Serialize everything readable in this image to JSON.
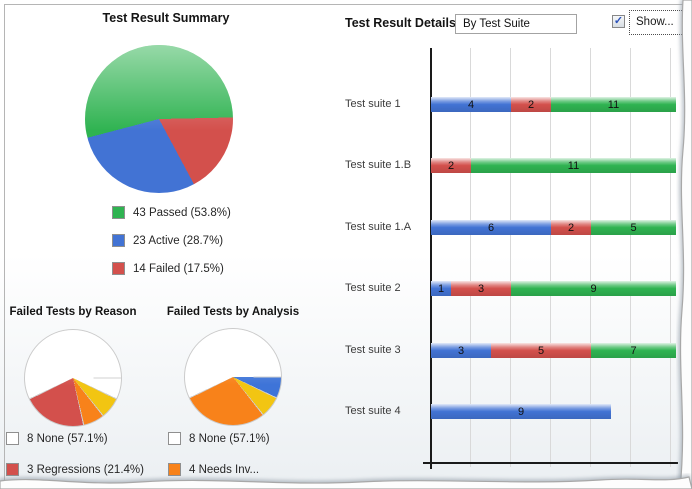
{
  "colors": {
    "passed": "#2fb351",
    "active": "#4273d4",
    "failed": "#d3504c",
    "orange": "#f8821a",
    "gold": "#f2c512",
    "blue": "#3e74d8",
    "white": "#ffffff",
    "grid": "#d9d9d9",
    "axis": "#1a1a1a",
    "slice_separator": "#cfcfcf"
  },
  "summary": {
    "title": "Test Result Summary",
    "legend": [
      {
        "label": "43 Passed (53.8%)",
        "color_key": "passed"
      },
      {
        "label": "23 Active (28.7%)",
        "color_key": "active"
      },
      {
        "label": "14 Failed (17.5%)",
        "color_key": "failed"
      }
    ]
  },
  "reason": {
    "title": "Failed Tests by Reason",
    "legend": [
      {
        "label": "8 None (57.1%)",
        "color_key": "white"
      },
      {
        "label": "3 Regressions (21.4%)",
        "color_key": "failed"
      }
    ]
  },
  "analysis": {
    "title": "Failed Tests by Analysis",
    "legend": [
      {
        "label": "8 None (57.1%)",
        "color_key": "white"
      },
      {
        "label": "4 Needs Inv...",
        "color_key": "orange"
      }
    ]
  },
  "details": {
    "title": "Test Result Details",
    "view_selector_value": "By Test Suite",
    "show_checkbox": {
      "label": "Show...",
      "checked": true
    }
  },
  "chart_data": [
    {
      "type": "pie",
      "title": "Test Result Summary",
      "total": 80,
      "start_deg": 255.3,
      "slices": [
        {
          "label": "Passed",
          "value": 43,
          "pct": 53.8,
          "color_key": "passed"
        },
        {
          "label": "Failed",
          "value": 14,
          "pct": 17.5,
          "color_key": "failed"
        },
        {
          "label": "Active",
          "value": 23,
          "pct": 28.7,
          "color_key": "active"
        }
      ],
      "legend_position": "below"
    },
    {
      "type": "pie",
      "title": "Failed Tests by Reason",
      "total": 14,
      "start_deg": 90,
      "separators": true,
      "slices": [
        {
          "label": "unlabeled",
          "value": 1,
          "color_key": "white"
        },
        {
          "label": "unlabeled",
          "value": 1,
          "color_key": "gold"
        },
        {
          "label": "unlabeled",
          "value": 1,
          "color_key": "orange"
        },
        {
          "label": "Regressions",
          "value": 3,
          "pct": 21.4,
          "color_key": "failed"
        },
        {
          "label": "None",
          "value": 8,
          "pct": 57.1,
          "color_key": "white"
        }
      ],
      "legend_position": "below"
    },
    {
      "type": "pie",
      "title": "Failed Tests by Analysis",
      "total": 14,
      "start_deg": 90,
      "separators": true,
      "slices": [
        {
          "label": "unlabeled",
          "value": 1,
          "color_key": "blue"
        },
        {
          "label": "unlabeled",
          "value": 1,
          "color_key": "gold"
        },
        {
          "label": "Needs Investigation",
          "value": 4,
          "pct": 28.6,
          "color_key": "orange"
        },
        {
          "label": "None",
          "value": 8,
          "pct": 57.1,
          "color_key": "white"
        }
      ],
      "legend_position": "below"
    },
    {
      "type": "stacked-bar-horizontal",
      "title": "Test Result Details - By Test Suite",
      "x_axis": {
        "units_per_gridline": 2,
        "gridline_count": 6,
        "bars_clipped_at_plot_edge": true
      },
      "state_colors": {
        "Active": "active",
        "Failed": "failed",
        "Passed": "passed"
      },
      "rows": [
        {
          "label": "Test suite 1",
          "segments": [
            {
              "state": "Active",
              "count": 4
            },
            {
              "state": "Failed",
              "count": 2
            },
            {
              "state": "Passed",
              "count": 11
            }
          ]
        },
        {
          "label": "Test suite 1.B",
          "segments": [
            {
              "state": "Failed",
              "count": 2
            },
            {
              "state": "Passed",
              "count": 11
            }
          ]
        },
        {
          "label": "Test suite 1.A",
          "segments": [
            {
              "state": "Active",
              "count": 6
            },
            {
              "state": "Failed",
              "count": 2
            },
            {
              "state": "Passed",
              "count": 5
            }
          ]
        },
        {
          "label": "Test suite 2",
          "segments": [
            {
              "state": "Active",
              "count": 1
            },
            {
              "state": "Failed",
              "count": 3
            },
            {
              "state": "Passed",
              "count": 9
            }
          ]
        },
        {
          "label": "Test suite 3",
          "segments": [
            {
              "state": "Active",
              "count": 3
            },
            {
              "state": "Failed",
              "count": 5
            },
            {
              "state": "Passed",
              "count": 7
            }
          ]
        },
        {
          "label": "Test suite 4",
          "segments": [
            {
              "state": "Active",
              "count": 9
            }
          ]
        }
      ]
    }
  ]
}
